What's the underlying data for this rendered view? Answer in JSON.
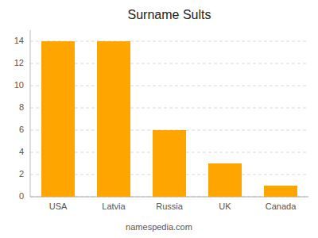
{
  "chart_data": {
    "type": "bar",
    "title": "Surname Sults",
    "categories": [
      "USA",
      "Latvia",
      "Russia",
      "UK",
      "Canada"
    ],
    "values": [
      14,
      14,
      6,
      3,
      1
    ],
    "color": "#FFA500",
    "ylim": [
      0,
      15
    ],
    "yticks": [
      0,
      2,
      4,
      6,
      8,
      10,
      12,
      14
    ],
    "grid": true,
    "annotations": [
      "namespedia.com"
    ]
  }
}
